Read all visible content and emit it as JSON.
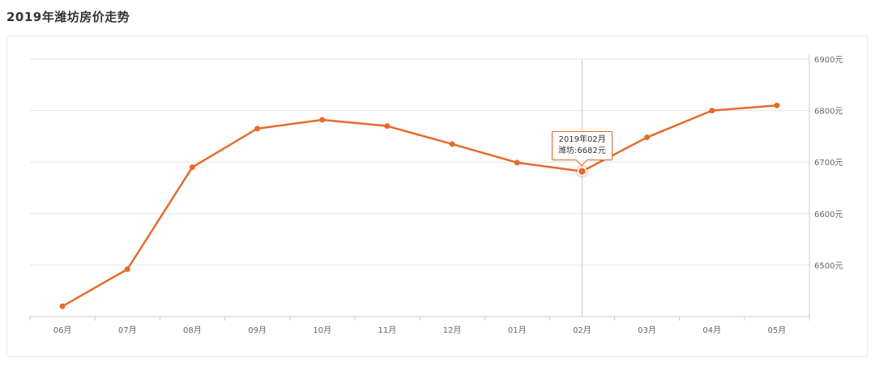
{
  "title": "2019年潍坊房价走势",
  "colors": {
    "line": "#e66b2c",
    "grid": "#e6e6e6",
    "axis": "#cccccc",
    "crosshair": "#c8c8c8"
  },
  "tooltip": {
    "title": "2019年02月",
    "line": "潍坊:6682元",
    "index": 8
  },
  "chart_data": {
    "type": "line",
    "categories": [
      "06月",
      "07月",
      "08月",
      "09月",
      "10月",
      "11月",
      "12月",
      "01月",
      "02月",
      "03月",
      "04月",
      "05月"
    ],
    "series": [
      {
        "name": "潍坊",
        "values": [
          6420,
          6492,
          6690,
          6765,
          6782,
          6770,
          6735,
          6699,
          6682,
          6748,
          6800,
          6810
        ]
      }
    ],
    "y_ticks": [
      "6500元",
      "6600元",
      "6700元",
      "6800元",
      "6900元"
    ],
    "y_tick_values": [
      6500,
      6600,
      6700,
      6800,
      6900
    ],
    "ylim": [
      6400,
      6900
    ],
    "y_axis_position": "right",
    "grid": true
  }
}
